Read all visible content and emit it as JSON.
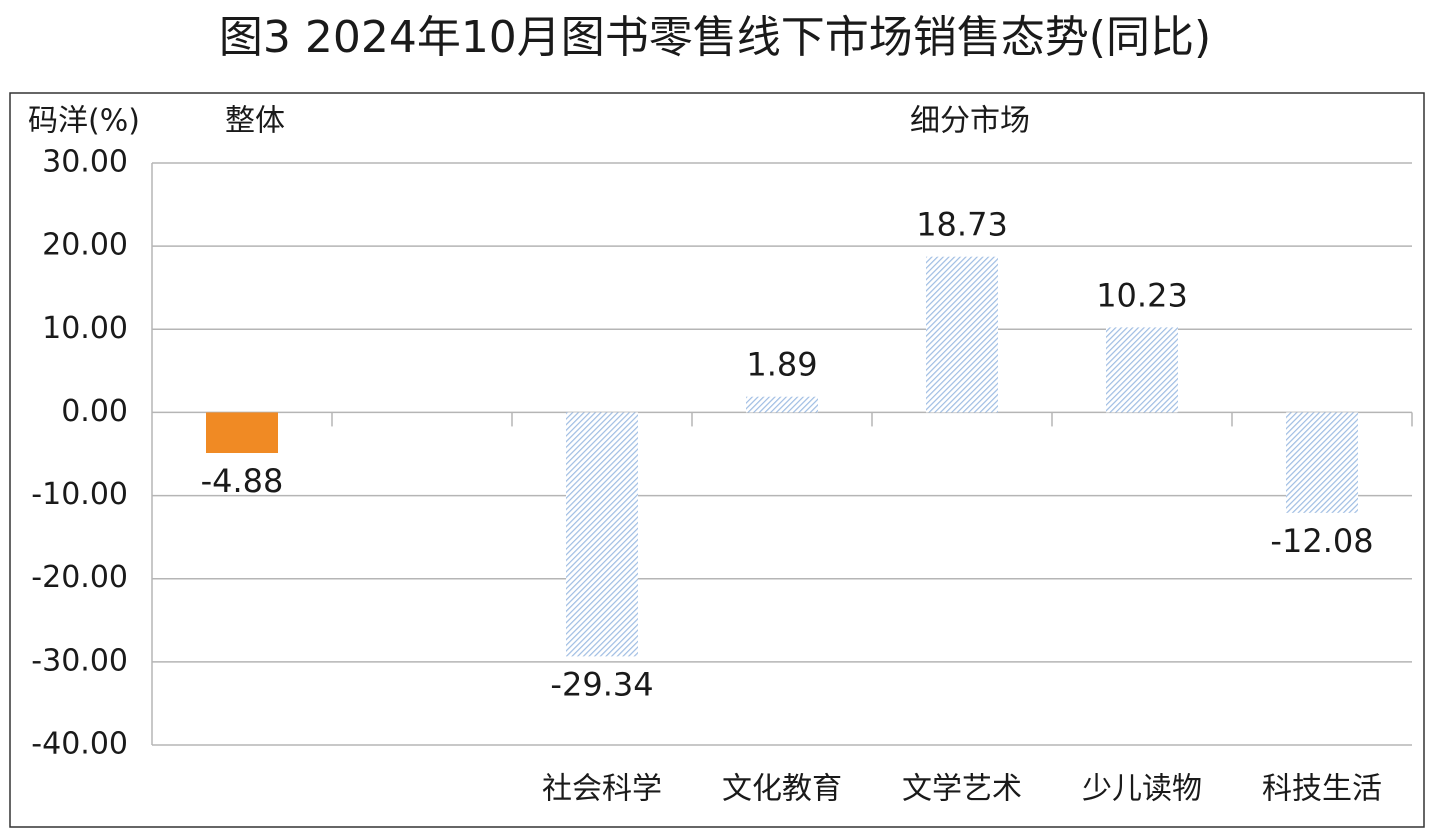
{
  "chart_data": {
    "type": "bar",
    "title": "图3 2024年10月图书零售线下市场销售态势(同比)",
    "y_label": "码洋(%)",
    "annotations": [
      "整体",
      "细分市场"
    ],
    "categories": [
      null,
      null,
      "社会科学",
      "文化教育",
      "文学艺术",
      "少儿读物",
      "科技生活"
    ],
    "values": [
      -4.88,
      null,
      -29.34,
      1.89,
      18.73,
      10.23,
      -12.08
    ],
    "color": "#9fbde3",
    "hatch": true,
    "highlight": {
      "index": 0,
      "color": "#f08a24"
    },
    "ylim": [
      -40,
      30
    ],
    "yticks": [
      {
        "value": 30,
        "label": "30.00"
      },
      {
        "value": 20,
        "label": "20.00"
      },
      {
        "value": 10,
        "label": "10.00"
      },
      {
        "value": 0,
        "label": "0.00"
      },
      {
        "value": -10,
        "label": "-10.00"
      },
      {
        "value": -20,
        "label": "-20.00"
      },
      {
        "value": -30,
        "label": "-30.00"
      },
      {
        "value": -40,
        "label": "-40.00"
      }
    ],
    "grid": true
  }
}
